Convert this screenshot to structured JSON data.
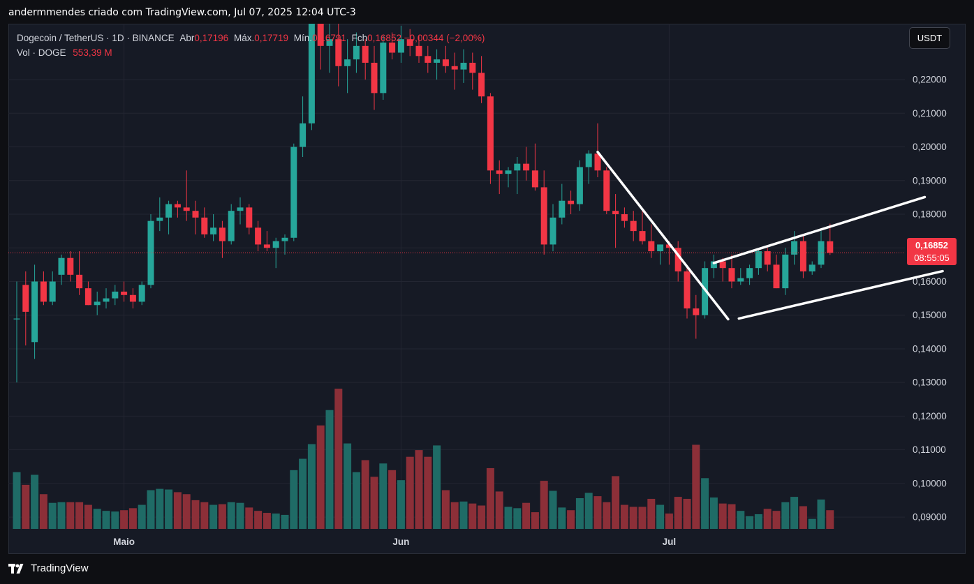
{
  "header": {
    "caption": "andermmendes criado com TradingView.com, Jul 07, 2025 12:04 UTC-3"
  },
  "legend": {
    "symbol": "Dogecoin / TetherUS · 1D · BINANCE",
    "open_label": "Abr",
    "open": "0,17196",
    "high_label": "Máx.",
    "high": "0,17719",
    "low_label": "Mín.",
    "low": "0,16791",
    "close_label": "Fch",
    "close": "0,16852",
    "change": "−0,00344 (−2,00%)",
    "volume_label": "Vol · DOGE",
    "volume": "553,39 M"
  },
  "currency_button": "USDT",
  "price_tag": {
    "value": "0,16852",
    "countdown": "08:55:05"
  },
  "footer": {
    "brand": "TradingView"
  },
  "colors": {
    "background": "#161a25",
    "up": "#26a69a",
    "down": "#f23645",
    "volume_up": "#1f6b66",
    "volume_down": "#8c2f38",
    "grid": "#232632",
    "trendline": "#ffffff"
  },
  "chart_data": {
    "type": "candlestick",
    "symbol": "DOGEUSDT",
    "interval": "1D",
    "y_range": [
      0.0865,
      0.2366
    ],
    "y_ticks": [
      "0,22000",
      "0,21000",
      "0,20000",
      "0,19000",
      "0,18000",
      "0,17000",
      "0,16000",
      "0,15000",
      "0,14000",
      "0,13000",
      "0,12000",
      "0,11000",
      "0,10000",
      "0,09000"
    ],
    "y_tick_values": [
      0.22,
      0.21,
      0.2,
      0.19,
      0.18,
      0.17,
      0.16,
      0.15,
      0.14,
      0.13,
      0.12,
      0.11,
      0.1,
      0.09
    ],
    "x_ticks": [
      {
        "label": "Maio",
        "index": 12
      },
      {
        "label": "Jun",
        "index": 43
      },
      {
        "label": "Jul",
        "index": 73
      }
    ],
    "last_price": 0.16852,
    "candles": [
      {
        "o": 0.149,
        "h": 0.16,
        "l": 0.13,
        "c": 0.149,
        "v": 0.85
      },
      {
        "o": 0.159,
        "h": 0.163,
        "l": 0.141,
        "c": 0.151,
        "v": 0.66
      },
      {
        "o": 0.142,
        "h": 0.165,
        "l": 0.137,
        "c": 0.16,
        "v": 0.81
      },
      {
        "o": 0.16,
        "h": 0.163,
        "l": 0.153,
        "c": 0.154,
        "v": 0.52
      },
      {
        "o": 0.154,
        "h": 0.163,
        "l": 0.153,
        "c": 0.16,
        "v": 0.39
      },
      {
        "o": 0.162,
        "h": 0.168,
        "l": 0.159,
        "c": 0.167,
        "v": 0.4
      },
      {
        "o": 0.167,
        "h": 0.169,
        "l": 0.16,
        "c": 0.162,
        "v": 0.4
      },
      {
        "o": 0.162,
        "h": 0.169,
        "l": 0.156,
        "c": 0.158,
        "v": 0.4
      },
      {
        "o": 0.158,
        "h": 0.16,
        "l": 0.153,
        "c": 0.153,
        "v": 0.36
      },
      {
        "o": 0.153,
        "h": 0.157,
        "l": 0.15,
        "c": 0.154,
        "v": 0.3
      },
      {
        "o": 0.154,
        "h": 0.158,
        "l": 0.152,
        "c": 0.155,
        "v": 0.27
      },
      {
        "o": 0.155,
        "h": 0.159,
        "l": 0.153,
        "c": 0.157,
        "v": 0.26
      },
      {
        "o": 0.157,
        "h": 0.16,
        "l": 0.154,
        "c": 0.156,
        "v": 0.28
      },
      {
        "o": 0.156,
        "h": 0.158,
        "l": 0.152,
        "c": 0.154,
        "v": 0.31
      },
      {
        "o": 0.154,
        "h": 0.16,
        "l": 0.153,
        "c": 0.159,
        "v": 0.36
      },
      {
        "o": 0.159,
        "h": 0.18,
        "l": 0.158,
        "c": 0.178,
        "v": 0.58
      },
      {
        "o": 0.178,
        "h": 0.185,
        "l": 0.175,
        "c": 0.179,
        "v": 0.6
      },
      {
        "o": 0.179,
        "h": 0.184,
        "l": 0.174,
        "c": 0.183,
        "v": 0.59
      },
      {
        "o": 0.183,
        "h": 0.184,
        "l": 0.179,
        "c": 0.182,
        "v": 0.55
      },
      {
        "o": 0.182,
        "h": 0.193,
        "l": 0.178,
        "c": 0.181,
        "v": 0.52
      },
      {
        "o": 0.181,
        "h": 0.184,
        "l": 0.174,
        "c": 0.179,
        "v": 0.43
      },
      {
        "o": 0.179,
        "h": 0.182,
        "l": 0.173,
        "c": 0.174,
        "v": 0.4
      },
      {
        "o": 0.174,
        "h": 0.18,
        "l": 0.172,
        "c": 0.176,
        "v": 0.36
      },
      {
        "o": 0.176,
        "h": 0.178,
        "l": 0.167,
        "c": 0.172,
        "v": 0.37
      },
      {
        "o": 0.172,
        "h": 0.183,
        "l": 0.171,
        "c": 0.181,
        "v": 0.4
      },
      {
        "o": 0.181,
        "h": 0.185,
        "l": 0.177,
        "c": 0.182,
        "v": 0.39
      },
      {
        "o": 0.182,
        "h": 0.183,
        "l": 0.174,
        "c": 0.176,
        "v": 0.32
      },
      {
        "o": 0.176,
        "h": 0.178,
        "l": 0.169,
        "c": 0.171,
        "v": 0.27
      },
      {
        "o": 0.171,
        "h": 0.175,
        "l": 0.169,
        "c": 0.17,
        "v": 0.24
      },
      {
        "o": 0.17,
        "h": 0.173,
        "l": 0.164,
        "c": 0.172,
        "v": 0.23
      },
      {
        "o": 0.172,
        "h": 0.174,
        "l": 0.168,
        "c": 0.173,
        "v": 0.21
      },
      {
        "o": 0.173,
        "h": 0.201,
        "l": 0.172,
        "c": 0.2,
        "v": 0.88
      },
      {
        "o": 0.2,
        "h": 0.215,
        "l": 0.197,
        "c": 0.207,
        "v": 1.05
      },
      {
        "o": 0.207,
        "h": 0.26,
        "l": 0.205,
        "c": 0.255,
        "v": 1.27
      },
      {
        "o": 0.255,
        "h": 0.258,
        "l": 0.223,
        "c": 0.23,
        "v": 1.55
      },
      {
        "o": 0.23,
        "h": 0.238,
        "l": 0.222,
        "c": 0.232,
        "v": 1.78
      },
      {
        "o": 0.232,
        "h": 0.24,
        "l": 0.218,
        "c": 0.224,
        "v": 2.1
      },
      {
        "o": 0.224,
        "h": 0.232,
        "l": 0.216,
        "c": 0.226,
        "v": 1.28
      },
      {
        "o": 0.226,
        "h": 0.234,
        "l": 0.222,
        "c": 0.23,
        "v": 0.85
      },
      {
        "o": 0.23,
        "h": 0.232,
        "l": 0.22,
        "c": 0.225,
        "v": 1.03
      },
      {
        "o": 0.225,
        "h": 0.23,
        "l": 0.211,
        "c": 0.216,
        "v": 0.78
      },
      {
        "o": 0.216,
        "h": 0.233,
        "l": 0.214,
        "c": 0.231,
        "v": 0.98
      },
      {
        "o": 0.231,
        "h": 0.234,
        "l": 0.226,
        "c": 0.228,
        "v": 0.88
      },
      {
        "o": 0.228,
        "h": 0.236,
        "l": 0.225,
        "c": 0.232,
        "v": 0.73
      },
      {
        "o": 0.232,
        "h": 0.235,
        "l": 0.227,
        "c": 0.23,
        "v": 1.08
      },
      {
        "o": 0.23,
        "h": 0.233,
        "l": 0.225,
        "c": 0.227,
        "v": 1.18
      },
      {
        "o": 0.227,
        "h": 0.23,
        "l": 0.222,
        "c": 0.225,
        "v": 1.08
      },
      {
        "o": 0.225,
        "h": 0.229,
        "l": 0.22,
        "c": 0.226,
        "v": 1.25
      },
      {
        "o": 0.226,
        "h": 0.23,
        "l": 0.222,
        "c": 0.224,
        "v": 0.58
      },
      {
        "o": 0.224,
        "h": 0.228,
        "l": 0.217,
        "c": 0.223,
        "v": 0.4
      },
      {
        "o": 0.223,
        "h": 0.229,
        "l": 0.219,
        "c": 0.225,
        "v": 0.41
      },
      {
        "o": 0.225,
        "h": 0.228,
        "l": 0.217,
        "c": 0.222,
        "v": 0.38
      },
      {
        "o": 0.222,
        "h": 0.227,
        "l": 0.213,
        "c": 0.215,
        "v": 0.35
      },
      {
        "o": 0.215,
        "h": 0.216,
        "l": 0.189,
        "c": 0.193,
        "v": 0.91
      },
      {
        "o": 0.193,
        "h": 0.196,
        "l": 0.186,
        "c": 0.192,
        "v": 0.56
      },
      {
        "o": 0.192,
        "h": 0.194,
        "l": 0.188,
        "c": 0.193,
        "v": 0.33
      },
      {
        "o": 0.193,
        "h": 0.197,
        "l": 0.186,
        "c": 0.195,
        "v": 0.31
      },
      {
        "o": 0.195,
        "h": 0.2,
        "l": 0.19,
        "c": 0.193,
        "v": 0.39
      },
      {
        "o": 0.193,
        "h": 0.201,
        "l": 0.187,
        "c": 0.188,
        "v": 0.25
      },
      {
        "o": 0.188,
        "h": 0.193,
        "l": 0.168,
        "c": 0.171,
        "v": 0.72
      },
      {
        "o": 0.171,
        "h": 0.183,
        "l": 0.169,
        "c": 0.179,
        "v": 0.57
      },
      {
        "o": 0.179,
        "h": 0.189,
        "l": 0.177,
        "c": 0.184,
        "v": 0.32
      },
      {
        "o": 0.184,
        "h": 0.187,
        "l": 0.18,
        "c": 0.183,
        "v": 0.28
      },
      {
        "o": 0.183,
        "h": 0.196,
        "l": 0.181,
        "c": 0.194,
        "v": 0.46
      },
      {
        "o": 0.194,
        "h": 0.199,
        "l": 0.189,
        "c": 0.198,
        "v": 0.54
      },
      {
        "o": 0.198,
        "h": 0.207,
        "l": 0.191,
        "c": 0.193,
        "v": 0.49
      },
      {
        "o": 0.193,
        "h": 0.194,
        "l": 0.18,
        "c": 0.181,
        "v": 0.4
      },
      {
        "o": 0.181,
        "h": 0.186,
        "l": 0.17,
        "c": 0.18,
        "v": 0.79
      },
      {
        "o": 0.18,
        "h": 0.182,
        "l": 0.176,
        "c": 0.178,
        "v": 0.36
      },
      {
        "o": 0.178,
        "h": 0.181,
        "l": 0.172,
        "c": 0.175,
        "v": 0.33
      },
      {
        "o": 0.175,
        "h": 0.181,
        "l": 0.171,
        "c": 0.172,
        "v": 0.33
      },
      {
        "o": 0.172,
        "h": 0.177,
        "l": 0.167,
        "c": 0.169,
        "v": 0.45
      },
      {
        "o": 0.169,
        "h": 0.171,
        "l": 0.165,
        "c": 0.171,
        "v": 0.36
      },
      {
        "o": 0.171,
        "h": 0.172,
        "l": 0.165,
        "c": 0.17,
        "v": 0.23
      },
      {
        "o": 0.17,
        "h": 0.172,
        "l": 0.16,
        "c": 0.163,
        "v": 0.48
      },
      {
        "o": 0.163,
        "h": 0.164,
        "l": 0.149,
        "c": 0.152,
        "v": 0.45
      },
      {
        "o": 0.152,
        "h": 0.156,
        "l": 0.143,
        "c": 0.15,
        "v": 1.26
      },
      {
        "o": 0.15,
        "h": 0.166,
        "l": 0.149,
        "c": 0.164,
        "v": 0.76
      },
      {
        "o": 0.164,
        "h": 0.168,
        "l": 0.161,
        "c": 0.166,
        "v": 0.47
      },
      {
        "o": 0.166,
        "h": 0.167,
        "l": 0.16,
        "c": 0.164,
        "v": 0.38
      },
      {
        "o": 0.164,
        "h": 0.168,
        "l": 0.158,
        "c": 0.16,
        "v": 0.37
      },
      {
        "o": 0.16,
        "h": 0.164,
        "l": 0.159,
        "c": 0.161,
        "v": 0.27
      },
      {
        "o": 0.161,
        "h": 0.165,
        "l": 0.159,
        "c": 0.164,
        "v": 0.19
      },
      {
        "o": 0.164,
        "h": 0.17,
        "l": 0.162,
        "c": 0.169,
        "v": 0.22
      },
      {
        "o": 0.169,
        "h": 0.17,
        "l": 0.163,
        "c": 0.165,
        "v": 0.3
      },
      {
        "o": 0.165,
        "h": 0.168,
        "l": 0.158,
        "c": 0.158,
        "v": 0.27
      },
      {
        "o": 0.158,
        "h": 0.17,
        "l": 0.156,
        "c": 0.168,
        "v": 0.4
      },
      {
        "o": 0.168,
        "h": 0.175,
        "l": 0.165,
        "c": 0.172,
        "v": 0.48
      },
      {
        "o": 0.172,
        "h": 0.174,
        "l": 0.161,
        "c": 0.163,
        "v": 0.34
      },
      {
        "o": 0.163,
        "h": 0.166,
        "l": 0.162,
        "c": 0.165,
        "v": 0.15
      },
      {
        "o": 0.165,
        "h": 0.175,
        "l": 0.164,
        "c": 0.172,
        "v": 0.44
      },
      {
        "o": 0.17196,
        "h": 0.17719,
        "l": 0.16791,
        "c": 0.16852,
        "v": 0.28
      }
    ],
    "trendlines": [
      {
        "from": {
          "index": 65.0,
          "price": 0.1985
        },
        "to": {
          "index": 79.6,
          "price": 0.1488
        }
      },
      {
        "from": {
          "index": 78.0,
          "price": 0.1655
        },
        "to": {
          "index": 101.6,
          "price": 0.1851
        }
      },
      {
        "from": {
          "index": 80.8,
          "price": 0.149
        },
        "to": {
          "index": 103.6,
          "price": 0.1631
        }
      }
    ]
  }
}
